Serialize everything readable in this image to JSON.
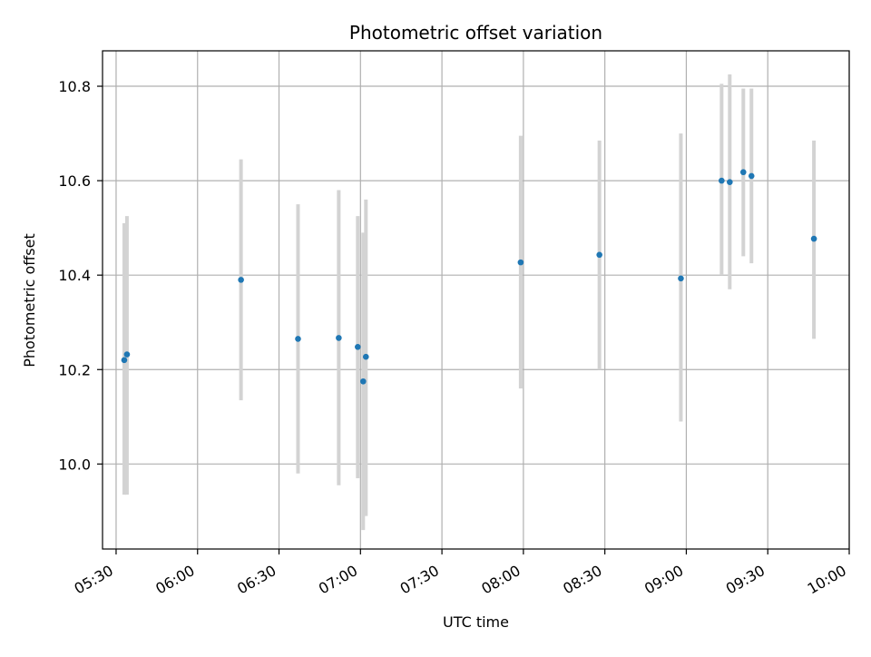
{
  "chart_data": {
    "type": "scatter",
    "title": "Photometric offset variation",
    "xlabel": "UTC time",
    "ylabel": "Photometric offset",
    "x_tick_labels": [
      "05:30",
      "06:00",
      "06:30",
      "07:00",
      "07:30",
      "08:00",
      "08:30",
      "09:00",
      "09:30",
      "10:00"
    ],
    "y_tick_labels": [
      "10.0",
      "10.2",
      "10.4",
      "10.6",
      "10.8"
    ],
    "xlim": [
      "05:25",
      "10:00"
    ],
    "ylim": [
      9.82,
      10.875
    ],
    "grid": true,
    "colors": {
      "points": "#1f77b4",
      "errorbars": "#d3d3d3",
      "grid": "#b0b0b0"
    },
    "series": [
      {
        "points": [
          {
            "time": "05:33",
            "y": 10.22,
            "ymin": 9.935,
            "ymax": 10.51
          },
          {
            "time": "05:34",
            "y": 10.232,
            "ymin": 9.935,
            "ymax": 10.525
          },
          {
            "time": "06:16",
            "y": 10.39,
            "ymin": 10.135,
            "ymax": 10.645
          },
          {
            "time": "06:37",
            "y": 10.265,
            "ymin": 9.98,
            "ymax": 10.55
          },
          {
            "time": "06:52",
            "y": 10.267,
            "ymin": 9.955,
            "ymax": 10.58
          },
          {
            "time": "06:59",
            "y": 10.248,
            "ymin": 9.97,
            "ymax": 10.525
          },
          {
            "time": "07:01",
            "y": 10.175,
            "ymin": 9.86,
            "ymax": 10.49
          },
          {
            "time": "07:02",
            "y": 10.227,
            "ymin": 9.89,
            "ymax": 10.56
          },
          {
            "time": "07:59",
            "y": 10.427,
            "ymin": 10.16,
            "ymax": 10.695
          },
          {
            "time": "08:28",
            "y": 10.443,
            "ymin": 10.2,
            "ymax": 10.685
          },
          {
            "time": "08:58",
            "y": 10.393,
            "ymin": 10.09,
            "ymax": 10.7
          },
          {
            "time": "09:13",
            "y": 10.6,
            "ymin": 10.4,
            "ymax": 10.805
          },
          {
            "time": "09:16",
            "y": 10.597,
            "ymin": 10.37,
            "ymax": 10.825
          },
          {
            "time": "09:21",
            "y": 10.618,
            "ymin": 10.44,
            "ymax": 10.795
          },
          {
            "time": "09:24",
            "y": 10.61,
            "ymin": 10.425,
            "ymax": 10.795
          },
          {
            "time": "09:47",
            "y": 10.477,
            "ymin": 10.265,
            "ymax": 10.685
          }
        ]
      }
    ]
  }
}
